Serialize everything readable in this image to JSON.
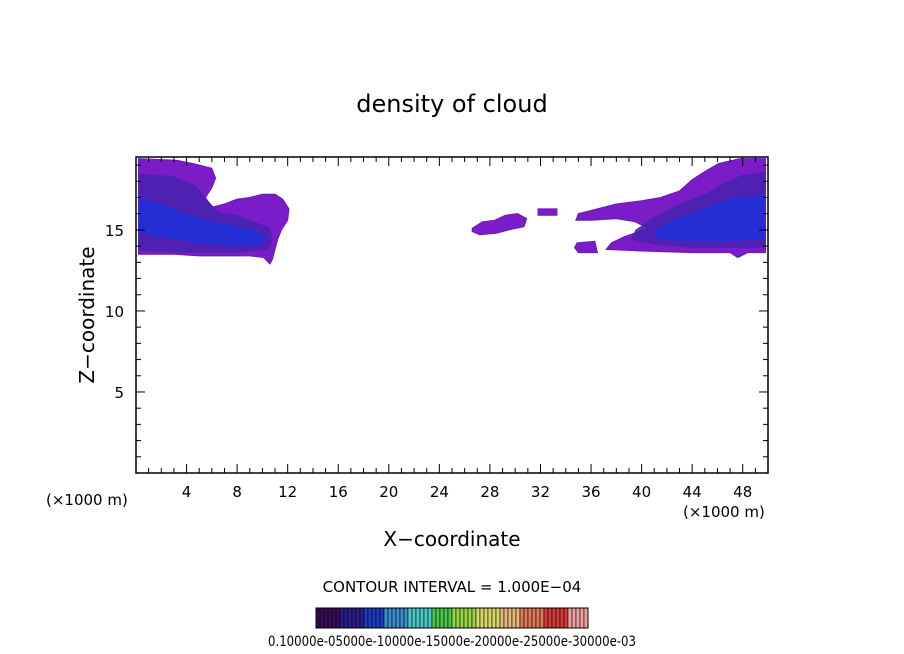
{
  "chart_data": {
    "type": "heatmap",
    "title": "density of cloud",
    "xlabel": "X−coordinate",
    "ylabel": "Z−coordinate",
    "x_unit_left": "(×1000 m)",
    "x_unit_right": "(×1000 m)",
    "xlim": [
      0,
      50
    ],
    "ylim": [
      0,
      19.5
    ],
    "xticks": [
      4,
      8,
      12,
      16,
      20,
      24,
      28,
      32,
      36,
      40,
      44,
      48
    ],
    "xtick_labels": [
      "4",
      "8",
      "12",
      "16",
      "20",
      "24",
      "28",
      "32",
      "36",
      "40",
      "44",
      "48"
    ],
    "yticks": [
      5,
      10,
      15
    ],
    "ytick_labels": [
      "5",
      "10",
      "15"
    ],
    "contour_interval_label": "CONTOUR INTERVAL = 1.000E−04",
    "colorbar_labels": "0.10000e-05000e-10000e-15000e-20000e-25000e-30000e-03",
    "colorbar_colors": [
      "#3a0a5a",
      "#2a1c8c",
      "#1a3cc8",
      "#3a8ccc",
      "#4ac8c8",
      "#48c848",
      "#98d848",
      "#d8d868",
      "#e8b878",
      "#e07858",
      "#d83838",
      "#f0a0a0"
    ],
    "regions": [
      {
        "name": "left-cloud",
        "outline": [
          [
            0.2,
            19.4
          ],
          [
            3.2,
            19.3
          ],
          [
            4.5,
            19.1
          ],
          [
            6.0,
            18.8
          ],
          [
            6.3,
            18.2
          ],
          [
            6.0,
            17.6
          ],
          [
            5.5,
            17.0
          ],
          [
            6.0,
            16.4
          ],
          [
            7.0,
            16.6
          ],
          [
            8.0,
            16.9
          ],
          [
            9.0,
            17.0
          ],
          [
            10.0,
            17.2
          ],
          [
            11.0,
            17.2
          ],
          [
            11.6,
            16.9
          ],
          [
            12.1,
            16.3
          ],
          [
            12.0,
            15.6
          ],
          [
            11.5,
            15.0
          ],
          [
            11.2,
            14.4
          ],
          [
            11.0,
            13.8
          ],
          [
            10.8,
            13.2
          ],
          [
            10.6,
            12.9
          ],
          [
            10.1,
            13.3
          ],
          [
            9.0,
            13.4
          ],
          [
            7.5,
            13.4
          ],
          [
            5.0,
            13.4
          ],
          [
            3.0,
            13.5
          ],
          [
            0.2,
            13.5
          ]
        ],
        "bands": [
          {
            "outline": [
              [
                0.2,
                18.5
              ],
              [
                3.0,
                18.3
              ],
              [
                4.8,
                17.7
              ],
              [
                5.6,
                16.9
              ],
              [
                6.5,
                16.1
              ],
              [
                8.0,
                15.9
              ],
              [
                9.4,
                15.5
              ],
              [
                10.6,
                15.1
              ],
              [
                10.8,
                14.4
              ],
              [
                10.5,
                13.8
              ],
              [
                8.0,
                13.6
              ],
              [
                4.0,
                13.6
              ],
              [
                0.2,
                13.7
              ]
            ],
            "color_index": 1
          },
          {
            "outline": [
              [
                0.2,
                17.0
              ],
              [
                2.0,
                16.6
              ],
              [
                3.6,
                16.1
              ],
              [
                5.5,
                15.6
              ],
              [
                7.5,
                15.3
              ],
              [
                9.4,
                15.0
              ],
              [
                10.3,
                14.6
              ],
              [
                10.0,
                14.1
              ],
              [
                8.0,
                14.0
              ],
              [
                5.0,
                14.2
              ],
              [
                2.5,
                14.5
              ],
              [
                0.2,
                14.8
              ]
            ],
            "color_index": 2
          }
        ]
      },
      {
        "name": "right-cloud",
        "outline": [
          [
            49.8,
            19.4
          ],
          [
            47.8,
            19.4
          ],
          [
            46.1,
            19.1
          ],
          [
            45.0,
            18.6
          ],
          [
            44.0,
            18.1
          ],
          [
            43.0,
            17.4
          ],
          [
            41.5,
            17.0
          ],
          [
            40.0,
            16.8
          ],
          [
            38.0,
            16.6
          ],
          [
            36.5,
            16.3
          ],
          [
            35.0,
            16.0
          ],
          [
            34.8,
            15.6
          ],
          [
            36.0,
            15.6
          ],
          [
            38.0,
            15.7
          ],
          [
            39.5,
            15.5
          ],
          [
            40.5,
            15.1
          ],
          [
            39.8,
            14.9
          ],
          [
            38.7,
            14.6
          ],
          [
            37.6,
            14.2
          ],
          [
            37.2,
            13.8
          ],
          [
            40.0,
            13.7
          ],
          [
            44.0,
            13.6
          ],
          [
            47.0,
            13.6
          ],
          [
            47.6,
            13.3
          ],
          [
            48.4,
            13.6
          ],
          [
            49.8,
            13.6
          ]
        ],
        "bands": [
          {
            "outline": [
              [
                49.8,
                18.6
              ],
              [
                48.0,
                18.4
              ],
              [
                46.5,
                17.9
              ],
              [
                45.0,
                17.2
              ],
              [
                43.0,
                16.6
              ],
              [
                41.0,
                15.8
              ],
              [
                39.5,
                15.0
              ],
              [
                39.2,
                14.4
              ],
              [
                41.0,
                14.1
              ],
              [
                44.0,
                13.9
              ],
              [
                47.5,
                13.9
              ],
              [
                49.8,
                13.9
              ]
            ],
            "color_index": 1
          },
          {
            "outline": [
              [
                49.8,
                17.2
              ],
              [
                47.0,
                16.9
              ],
              [
                44.5,
                16.2
              ],
              [
                42.5,
                15.6
              ],
              [
                41.0,
                15.0
              ],
              [
                41.2,
                14.5
              ],
              [
                43.5,
                14.3
              ],
              [
                46.5,
                14.3
              ],
              [
                49.8,
                14.4
              ]
            ],
            "color_index": 2
          }
        ]
      },
      {
        "name": "blob-28",
        "outline": [
          [
            26.6,
            15.1
          ],
          [
            27.4,
            15.5
          ],
          [
            28.4,
            15.6
          ],
          [
            29.2,
            15.9
          ],
          [
            30.2,
            16.0
          ],
          [
            30.9,
            15.7
          ],
          [
            30.7,
            15.2
          ],
          [
            29.5,
            15.0
          ],
          [
            28.5,
            14.8
          ],
          [
            27.2,
            14.7
          ],
          [
            26.6,
            14.9
          ]
        ],
        "bands": []
      },
      {
        "name": "blob-32",
        "outline": [
          [
            31.8,
            16.3
          ],
          [
            33.3,
            16.3
          ],
          [
            33.3,
            15.9
          ],
          [
            31.8,
            15.9
          ]
        ],
        "bands": []
      },
      {
        "name": "blob-36",
        "outline": [
          [
            34.9,
            14.2
          ],
          [
            36.3,
            14.3
          ],
          [
            36.5,
            13.6
          ],
          [
            35.0,
            13.6
          ],
          [
            34.7,
            13.9
          ]
        ],
        "bands": []
      }
    ]
  }
}
